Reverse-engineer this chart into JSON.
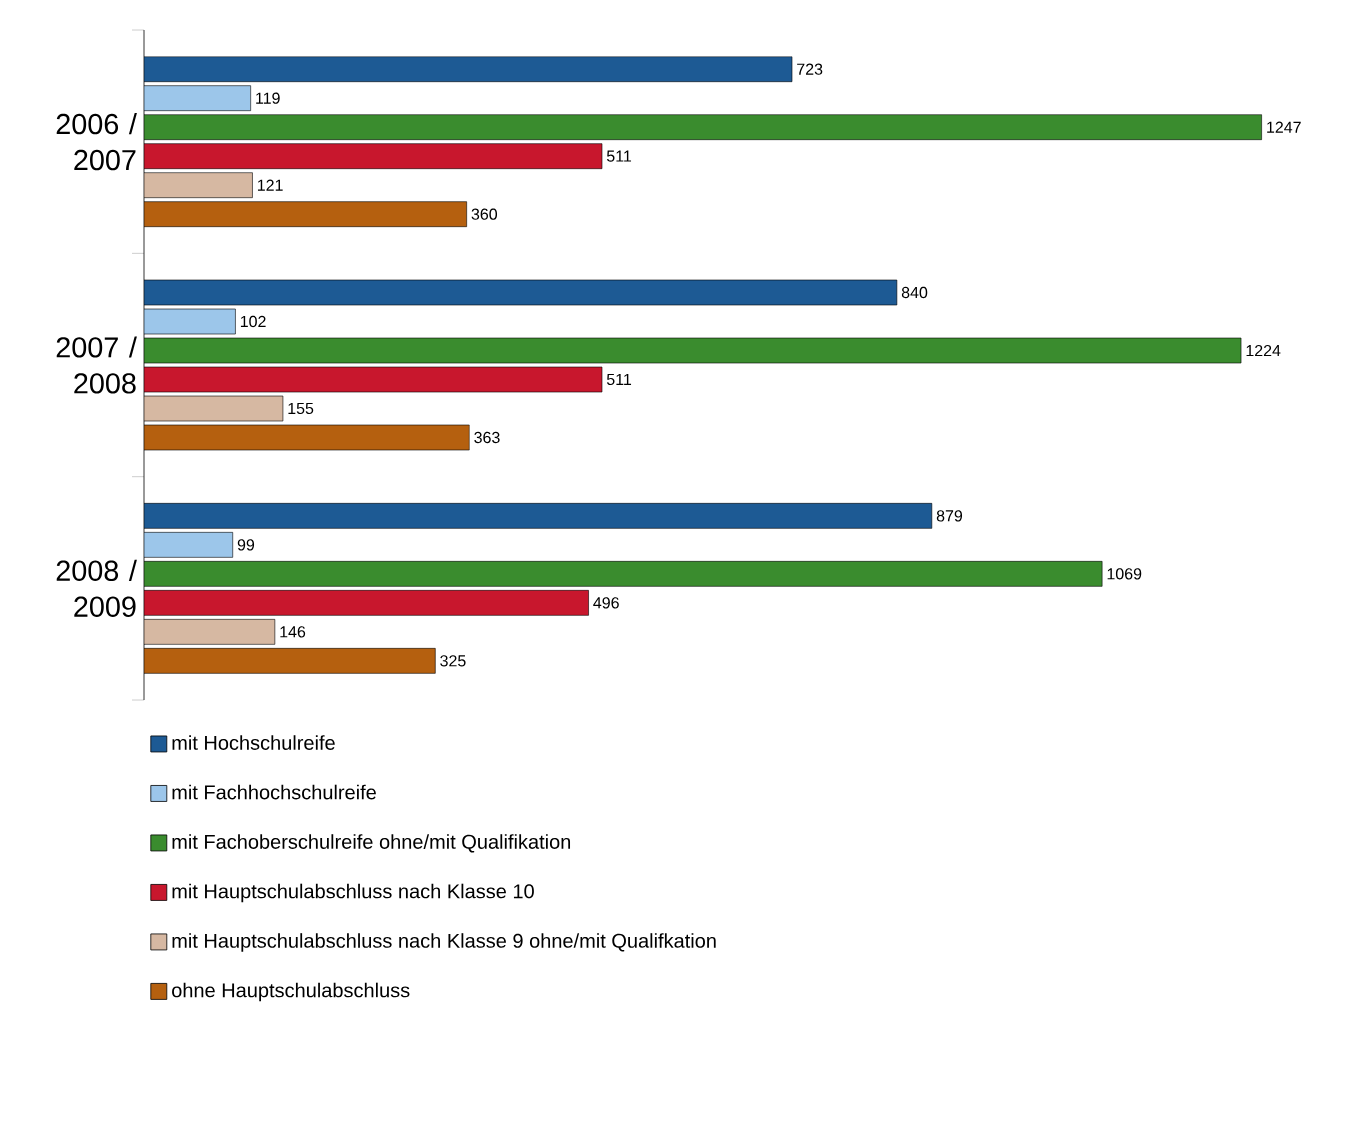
{
  "chart_data": {
    "type": "bar",
    "orientation": "horizontal",
    "categories": [
      "2006 / 2007",
      "2007 / 2008",
      "2008 / 2009"
    ],
    "series": [
      {
        "name": "mit Hochschulreife",
        "color": "#1d5a94",
        "values": [
          723,
          840,
          879
        ]
      },
      {
        "name": "mit Fachhochschulreife",
        "color": "#9cc6ea",
        "values": [
          119,
          102,
          99
        ]
      },
      {
        "name": "mit Fachoberschulreife ohne/mit Qualifikation",
        "color": "#3a8c2e",
        "values": [
          1247,
          1224,
          1069
        ]
      },
      {
        "name": "mit Hauptschulabschluss nach Klasse 10",
        "color": "#c8172d",
        "values": [
          511,
          511,
          496
        ]
      },
      {
        "name": "mit Hauptschulabschluss nach Klasse 9 ohne/mit Qualifkation",
        "color": "#d6b8a2",
        "values": [
          121,
          155,
          146
        ]
      },
      {
        "name": "ohne Hauptschulabschluss",
        "color": "#b5600f",
        "values": [
          360,
          363,
          325
        ]
      }
    ],
    "data_labels": true,
    "legend": "bottom",
    "tick_labels": "y"
  }
}
